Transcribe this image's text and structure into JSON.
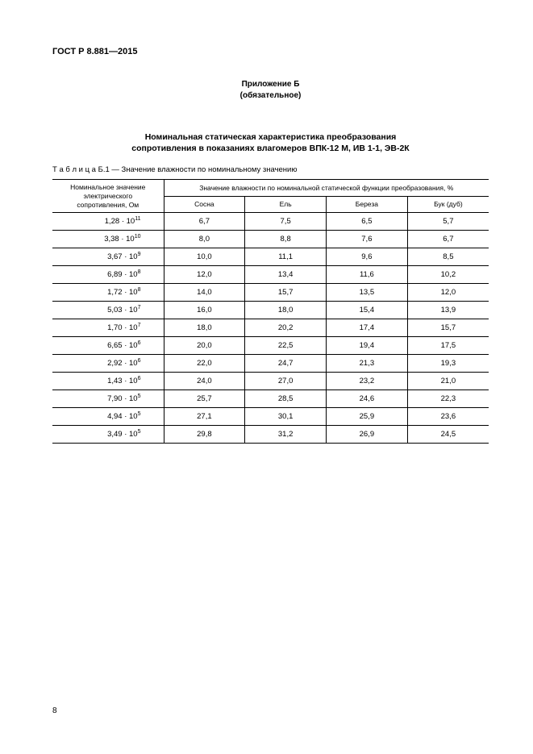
{
  "doc_id": "ГОСТ Р 8.881—2015",
  "appendix_label": "Приложение Б",
  "appendix_note": "(обязательное)",
  "title_line1": "Номинальная статическая характеристика преобразования",
  "title_line2": "сопротивления в показаниях влагомеров ВПК-12 М, ИВ 1-1, ЭВ-2К",
  "table_caption_prefix": "Т а б л и ц а",
  "table_caption_rest": "  Б.1 — Значение влажности по номинальному значению",
  "columns": {
    "resistance_header_l1": "Номинальное значение",
    "resistance_header_l2": "электрического",
    "resistance_header_l3": "сопротивления, Ом",
    "group_header": "Значение влажности по номинальной  статической функции преобразования, %",
    "c1": "Сосна",
    "c2": "Ель",
    "c3": "Береза",
    "c4": "Бук (дуб)"
  },
  "rows": [
    {
      "mant": "1,28",
      "exp": "11",
      "v": [
        "6,7",
        "7,5",
        "6,5",
        "5,7"
      ]
    },
    {
      "mant": "3,38",
      "exp": "10",
      "v": [
        "8,0",
        "8,8",
        "7,6",
        "6,7"
      ]
    },
    {
      "mant": "3,67",
      "exp": "9",
      "v": [
        "10,0",
        "11,1",
        "9,6",
        "8,5"
      ]
    },
    {
      "mant": "6,89",
      "exp": "8",
      "v": [
        "12,0",
        "13,4",
        "11,6",
        "10,2"
      ]
    },
    {
      "mant": "1,72",
      "exp": "8",
      "v": [
        "14,0",
        "15,7",
        "13,5",
        "12,0"
      ]
    },
    {
      "mant": "5,03",
      "exp": "7",
      "v": [
        "16,0",
        "18,0",
        "15,4",
        "13,9"
      ]
    },
    {
      "mant": "1,70",
      "exp": "7",
      "v": [
        "18,0",
        "20,2",
        "17,4",
        "15,7"
      ]
    },
    {
      "mant": "6,65",
      "exp": "6",
      "v": [
        "20,0",
        "22,5",
        "19,4",
        "17,5"
      ]
    },
    {
      "mant": "2,92",
      "exp": "6",
      "v": [
        "22,0",
        "24,7",
        "21,3",
        "19,3"
      ]
    },
    {
      "mant": "1,43",
      "exp": "6",
      "v": [
        "24,0",
        "27,0",
        "23,2",
        "21,0"
      ]
    },
    {
      "mant": "7,90",
      "exp": "5",
      "v": [
        "25,7",
        "28,5",
        "24,6",
        "22,3"
      ]
    },
    {
      "mant": "4,94",
      "exp": "5",
      "v": [
        "27,1",
        "30,1",
        "25,9",
        "23,6"
      ]
    },
    {
      "mant": "3,49",
      "exp": "5",
      "v": [
        "29,8",
        "31,2",
        "26,9",
        "24,5"
      ]
    }
  ],
  "page_number": "8"
}
